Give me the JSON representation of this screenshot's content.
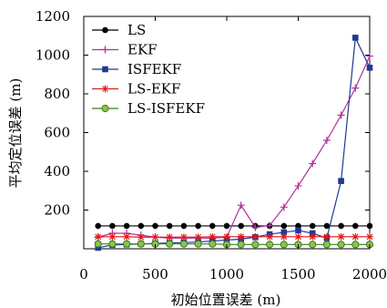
{
  "chart_data": {
    "type": "line",
    "xlabel": "初始位置误差 (m)",
    "ylabel": "平均定位误差 (m)",
    "xlim": [
      0,
      2000
    ],
    "ylim": [
      0,
      1200
    ],
    "xticks": [
      0,
      500,
      1000,
      1500,
      2000
    ],
    "yticks": [
      0,
      200,
      400,
      600,
      800,
      1000,
      1200
    ],
    "xtick_labels": [
      "0",
      "500",
      "1000",
      "1500",
      "2000"
    ],
    "ytick_labels": [
      "",
      "200",
      "400",
      "600",
      "800",
      "1000",
      "1200"
    ],
    "grid": false,
    "legend_position": "top-left",
    "series": [
      {
        "name": "LS",
        "color": "#000000",
        "marker": "circle",
        "x": [
          100,
          200,
          300,
          400,
          500,
          600,
          700,
          800,
          900,
          1000,
          1100,
          1200,
          1300,
          1400,
          1500,
          1600,
          1700,
          1800,
          1900,
          2000
        ],
        "y": [
          118,
          118,
          118,
          118,
          118,
          118,
          118,
          118,
          118,
          118,
          118,
          118,
          118,
          118,
          118,
          118,
          118,
          118,
          118,
          118
        ]
      },
      {
        "name": "EKF",
        "color": "#b0309b",
        "marker": "plus",
        "x": [
          100,
          200,
          300,
          400,
          500,
          600,
          700,
          800,
          900,
          1000,
          1100,
          1200,
          1300,
          1400,
          1500,
          1600,
          1700,
          1800,
          1900,
          2000
        ],
        "y": [
          60,
          80,
          80,
          70,
          60,
          55,
          55,
          55,
          55,
          60,
          225,
          110,
          120,
          215,
          325,
          440,
          560,
          690,
          830,
          995
        ]
      },
      {
        "name": "ISFEKF",
        "color": "#1f3a93",
        "marker": "square",
        "x": [
          100,
          200,
          300,
          400,
          500,
          600,
          700,
          800,
          900,
          1000,
          1100,
          1200,
          1300,
          1400,
          1500,
          1600,
          1700,
          1800,
          1900,
          2000
        ],
        "y": [
          5,
          20,
          22,
          25,
          28,
          30,
          32,
          35,
          40,
          45,
          50,
          60,
          75,
          85,
          95,
          80,
          55,
          350,
          1090,
          935
        ]
      },
      {
        "name": "LS-EKF",
        "color": "#e0191c",
        "marker": "star",
        "x": [
          100,
          200,
          300,
          400,
          500,
          600,
          700,
          800,
          900,
          1000,
          1100,
          1200,
          1300,
          1400,
          1500,
          1600,
          1700,
          1800,
          1900,
          2000
        ],
        "y": [
          62,
          62,
          62,
          60,
          60,
          60,
          60,
          60,
          62,
          62,
          62,
          62,
          62,
          62,
          62,
          62,
          62,
          62,
          62,
          62
        ]
      },
      {
        "name": "LS-ISFEKF",
        "color": "#3a7d1e",
        "fill": "#8bc34a",
        "marker": "circle-filled",
        "x": [
          100,
          200,
          300,
          400,
          500,
          600,
          700,
          800,
          900,
          1000,
          1100,
          1200,
          1300,
          1400,
          1500,
          1600,
          1700,
          1800,
          1900,
          2000
        ],
        "y": [
          25,
          25,
          25,
          25,
          25,
          25,
          25,
          25,
          25,
          22,
          22,
          22,
          22,
          22,
          22,
          22,
          22,
          22,
          22,
          22
        ]
      }
    ]
  }
}
